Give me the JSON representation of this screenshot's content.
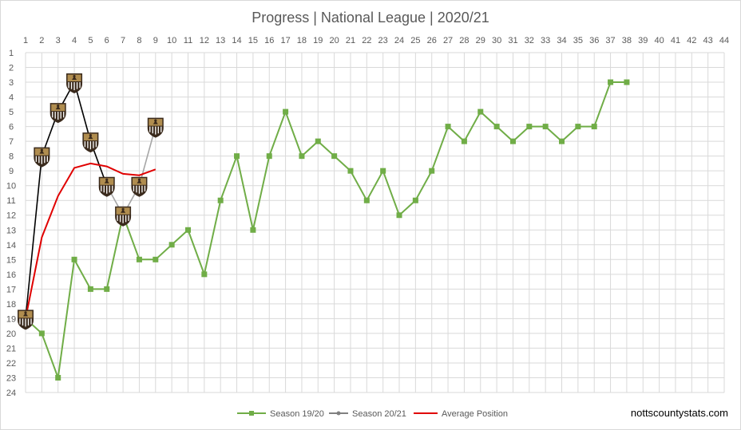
{
  "title": "Progress | National League | 2020/21",
  "site_label": "nottscountystats.com",
  "colors": {
    "season_1920": "#70ad47",
    "season_2021": "#a6a6a6",
    "season_2021_line": "#000000",
    "average": "#e00000",
    "grid": "#d9d9d9",
    "badge_gold": "#b08d4f",
    "badge_dark": "#3a2a1c"
  },
  "chart_data": {
    "type": "line",
    "title": "Progress | National League | 2020/21",
    "xlim": [
      1,
      44
    ],
    "ylim": [
      1,
      24
    ],
    "y_inverted": true,
    "x_ticks": [
      1,
      2,
      3,
      4,
      5,
      6,
      7,
      8,
      9,
      10,
      11,
      12,
      13,
      14,
      15,
      16,
      17,
      18,
      19,
      20,
      21,
      22,
      23,
      24,
      25,
      26,
      27,
      28,
      29,
      30,
      31,
      32,
      33,
      34,
      35,
      36,
      37,
      38,
      39,
      40,
      41,
      42,
      43,
      44
    ],
    "y_ticks": [
      1,
      2,
      3,
      4,
      5,
      6,
      7,
      8,
      9,
      10,
      11,
      12,
      13,
      14,
      15,
      16,
      17,
      18,
      19,
      20,
      21,
      22,
      23,
      24
    ],
    "grid": true,
    "legend_position": "bottom",
    "series": [
      {
        "name": "Season 19/20",
        "x": [
          1,
          2,
          3,
          4,
          5,
          6,
          7,
          8,
          9,
          10,
          11,
          12,
          13,
          14,
          15,
          16,
          17,
          18,
          19,
          20,
          21,
          22,
          23,
          24,
          25,
          26,
          27,
          28,
          29,
          30,
          31,
          32,
          33,
          34,
          35,
          36,
          37,
          38
        ],
        "values": [
          19,
          20,
          23,
          15,
          17,
          17,
          12,
          15,
          15,
          14,
          13,
          16,
          11,
          8,
          13,
          8,
          5,
          8,
          7,
          8,
          9,
          11,
          9,
          12,
          11,
          9,
          6,
          7,
          5,
          6,
          7,
          6,
          6,
          7,
          6,
          6,
          3,
          3
        ]
      },
      {
        "name": "Season 20/21",
        "x": [
          1,
          2,
          3,
          4,
          5,
          6,
          7,
          8,
          9
        ],
        "values": [
          19,
          8,
          5,
          3,
          7,
          10,
          12,
          10,
          6
        ]
      },
      {
        "name": "Average Position",
        "x": [
          1,
          2,
          3,
          4,
          5,
          6,
          7,
          8,
          9
        ],
        "values": [
          19,
          13.5,
          10.7,
          8.8,
          8.5,
          8.7,
          9.2,
          9.3,
          8.9
        ]
      }
    ]
  }
}
